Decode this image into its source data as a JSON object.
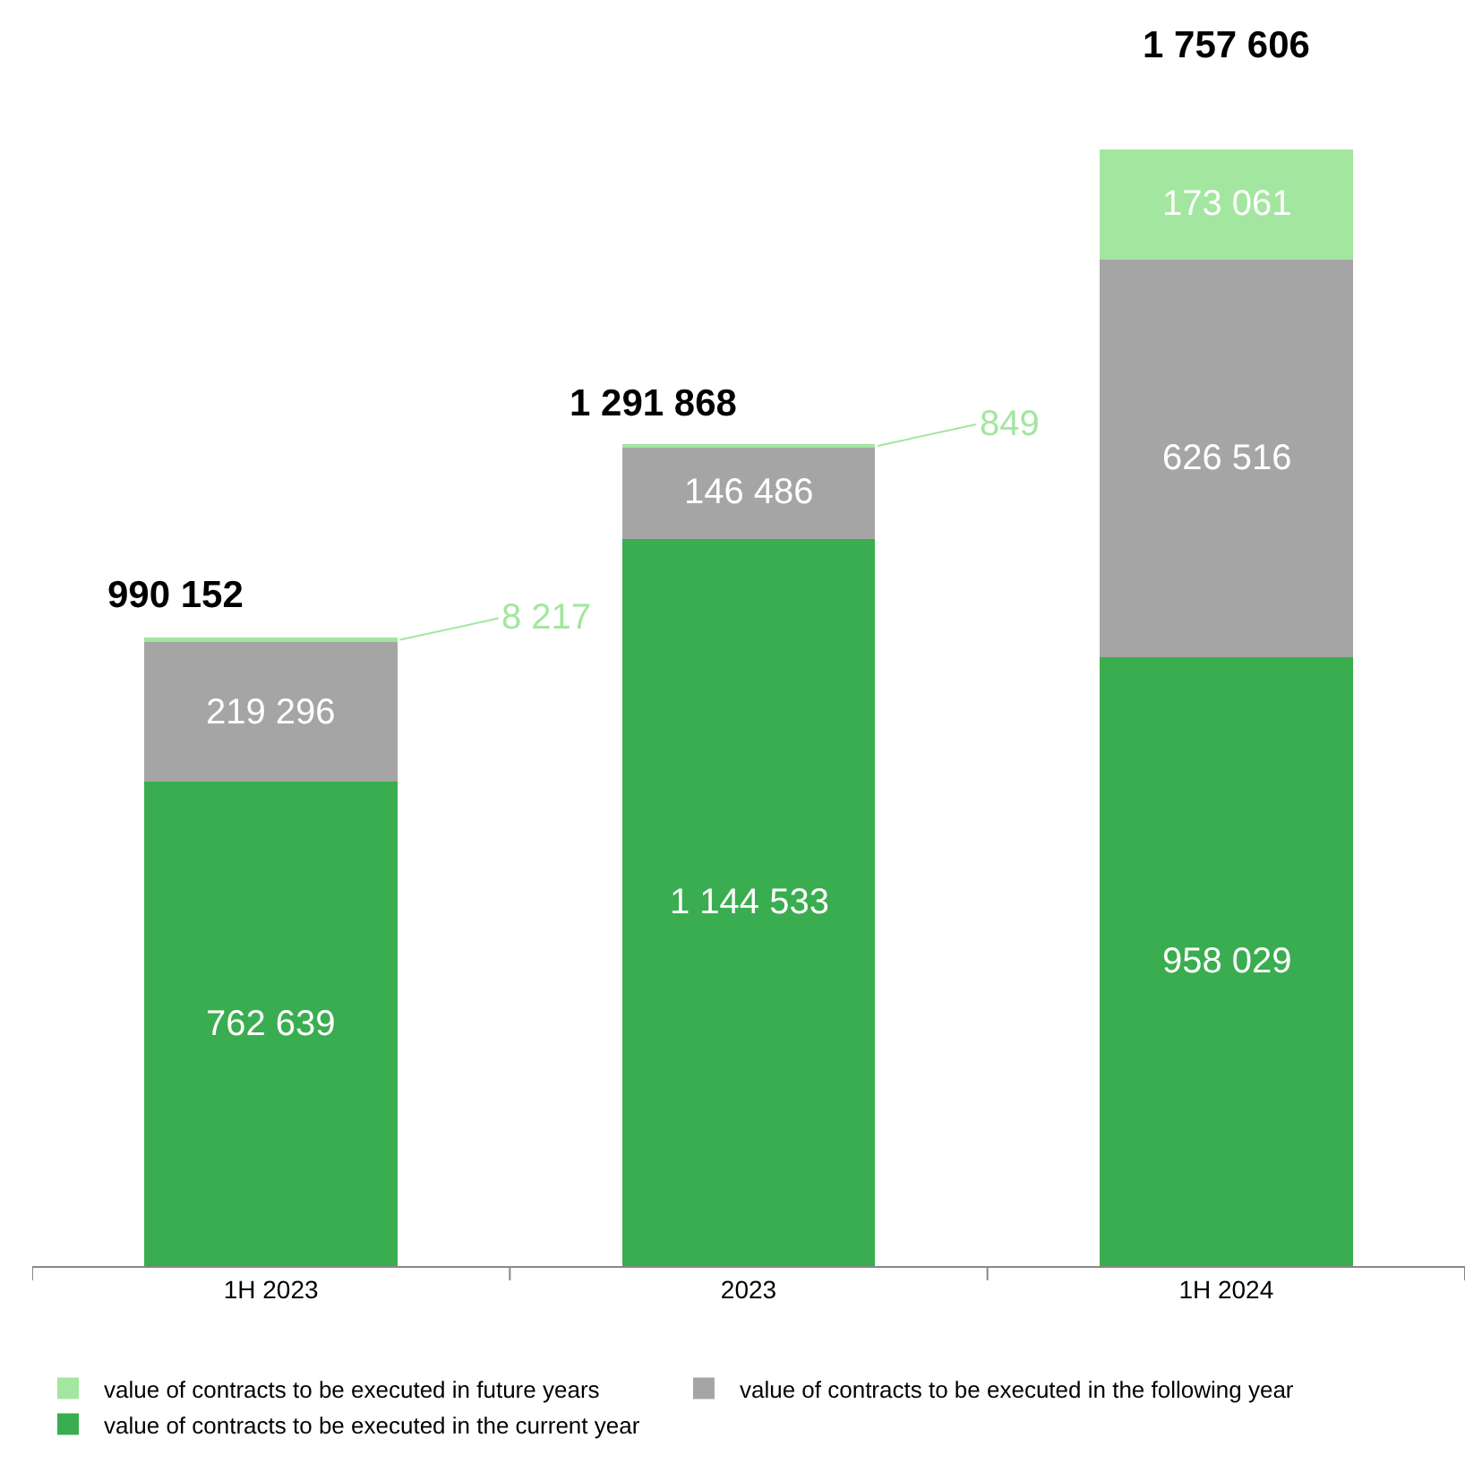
{
  "chart_data": {
    "type": "bar",
    "stacked": true,
    "categories": [
      "1H 2023",
      "2023",
      "1H 2024"
    ],
    "series": [
      {
        "name": "value of contracts to be executed in the current year",
        "color": "#39ad4f",
        "values": [
          762639,
          1144533,
          958029
        ],
        "value_labels": [
          "762 639",
          "1 144 533",
          "958 029"
        ]
      },
      {
        "name": "value of contracts to be executed in the following year",
        "color": "#a5a5a5",
        "values": [
          219296,
          146486,
          626516
        ],
        "value_labels": [
          "219 296",
          "146 486",
          "626 516"
        ]
      },
      {
        "name": "value of contracts to be executed in future years",
        "color": "#a3e6a0",
        "values": [
          8217,
          849,
          173061
        ],
        "value_labels": [
          "8 217",
          "849",
          "173 061"
        ]
      }
    ],
    "totals": [
      "990 152",
      "1 291 868",
      "1 757 606"
    ],
    "legend": "bottom"
  }
}
